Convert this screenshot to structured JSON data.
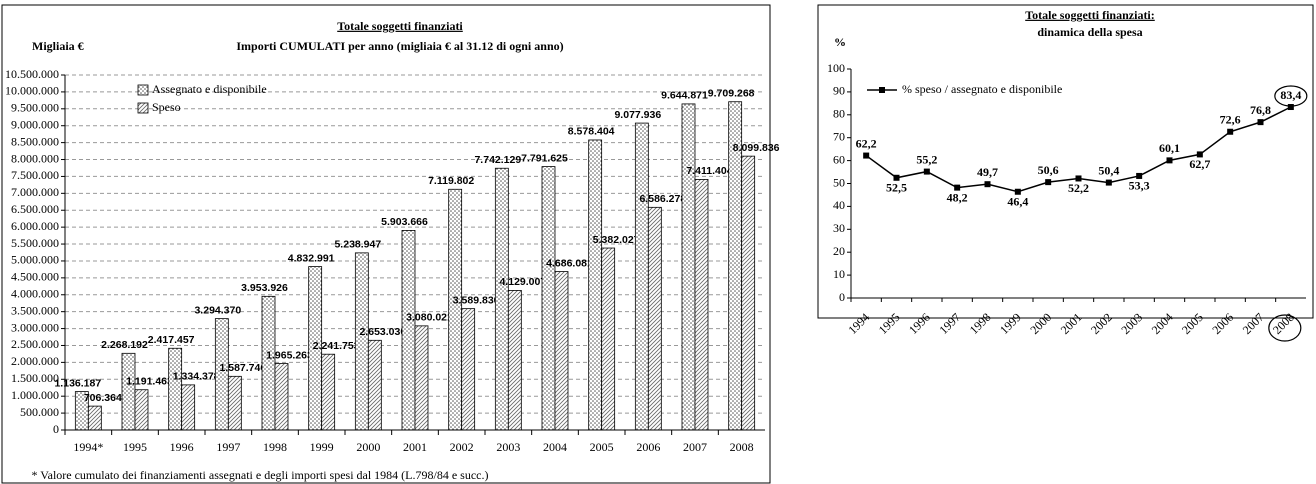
{
  "chart_data": [
    {
      "type": "bar",
      "title": "Totale soggetti finanziati",
      "subtitle": "Importi CUMULATI per anno (migliaia € al 31.12 di ogni anno)",
      "y_label": "Migliaia €",
      "footnote": "* Valore cumulato dei finanziamenti assegnati e degli importi spesi dal 1984 (L.798/84 e succ.)",
      "categories": [
        "1994*",
        "1995",
        "1996",
        "1997",
        "1998",
        "1999",
        "2000",
        "2001",
        "2002",
        "2003",
        "2004",
        "2005",
        "2006",
        "2007",
        "2008"
      ],
      "series": [
        {
          "name": "Assegnato e disponibile",
          "color": "#ffffff",
          "pattern": "dots",
          "values": [
            1136187,
            2268192,
            2417457,
            3294370,
            3953926,
            4832991,
            5238947,
            5903666,
            7119802,
            7742129,
            7791625,
            8578404,
            9077936,
            9644871,
            9709268
          ],
          "value_labels": [
            "1.136.187",
            "2.268.192",
            "2.417.457",
            "3.294.370",
            "3.953.926",
            "4.832.991",
            "5.238.947",
            "5.903.666",
            "7.119.802",
            "7.742.129",
            "7.791.625",
            "8.578.404",
            "9.077.936",
            "9.644.871",
            "9.709.268"
          ]
        },
        {
          "name": "Speso",
          "color": "#ffffff",
          "pattern": "hatch",
          "values": [
            706364,
            1191463,
            1334378,
            1587746,
            1965263,
            2241753,
            2653030,
            3080021,
            3589830,
            4129007,
            4686081,
            5382027,
            6586278,
            7411404,
            8099836
          ],
          "value_labels": [
            "706.364",
            "1.191.463",
            "1.334.378",
            "1.587.746",
            "1.965.263",
            "2.241.753",
            "2.653.030",
            "3.080.021",
            "3.589.830",
            "4.129.007",
            "4.686.081",
            "5.382.027",
            "6.586.278",
            "7.411.404",
            "8.099.836"
          ]
        }
      ],
      "ylim": [
        0,
        10500000
      ],
      "yticks": [
        0,
        {
          "value": 500000,
          "label": "500.000"
        },
        {
          "value": 1000000,
          "label": "1.000.000"
        },
        {
          "value": 1500000,
          "label": "1.500.000"
        },
        {
          "value": 2000000,
          "label": "2.000.000"
        },
        {
          "value": 2500000,
          "label": "2.500.000"
        },
        {
          "value": 3000000,
          "label": "3.000.000"
        },
        {
          "value": 3500000,
          "label": "3.500.000"
        },
        {
          "value": 4000000,
          "label": "4.000.000"
        },
        {
          "value": 4500000,
          "label": "4.500.000"
        },
        {
          "value": 5000000,
          "label": "5.000.000"
        },
        {
          "value": 5500000,
          "label": "5.500.000"
        },
        {
          "value": 6000000,
          "label": "6.000.000"
        },
        {
          "value": 6500000,
          "label": "6.500.000"
        },
        {
          "value": 7000000,
          "label": "7.000.000"
        },
        {
          "value": 7500000,
          "label": "7.500.000"
        },
        {
          "value": 8000000,
          "label": "8.000.000"
        },
        {
          "value": 8500000,
          "label": "8.500.000"
        },
        {
          "value": 9000000,
          "label": "9.000.000"
        },
        {
          "value": 9500000,
          "label": "9.500.000"
        },
        {
          "value": 10000000,
          "label": "10.000.000"
        },
        {
          "value": 10500000,
          "label": "10.500.000"
        }
      ],
      "grid": true,
      "legend": "upper left"
    },
    {
      "type": "line",
      "title": "Totale soggetti finanziati:",
      "subtitle": "dinamica della spesa",
      "y_label": "%",
      "categories": [
        "1994",
        "1995",
        "1996",
        "1997",
        "1998",
        "1999",
        "2000",
        "2001",
        "2002",
        "2003",
        "2004",
        "2005",
        "2006",
        "2007",
        "2008"
      ],
      "series": [
        {
          "name": "% speso / assegnato e disponibile",
          "color": "#000000",
          "values": [
            62.2,
            52.5,
            55.2,
            48.2,
            49.7,
            46.4,
            50.6,
            52.2,
            50.4,
            53.3,
            60.1,
            62.7,
            72.6,
            76.8,
            83.4
          ],
          "value_labels": [
            "62,2",
            "52,5",
            "55,2",
            "48,2",
            "49,7",
            "46,4",
            "50,6",
            "52,2",
            "50,4",
            "53,3",
            "60,1",
            "62,7",
            "72,6",
            "76,8",
            "83,4"
          ]
        }
      ],
      "ylim": [
        0,
        100
      ],
      "yticks": [
        0,
        10,
        20,
        30,
        40,
        50,
        60,
        70,
        80,
        90,
        100
      ],
      "grid": false,
      "legend": "upper left"
    }
  ]
}
